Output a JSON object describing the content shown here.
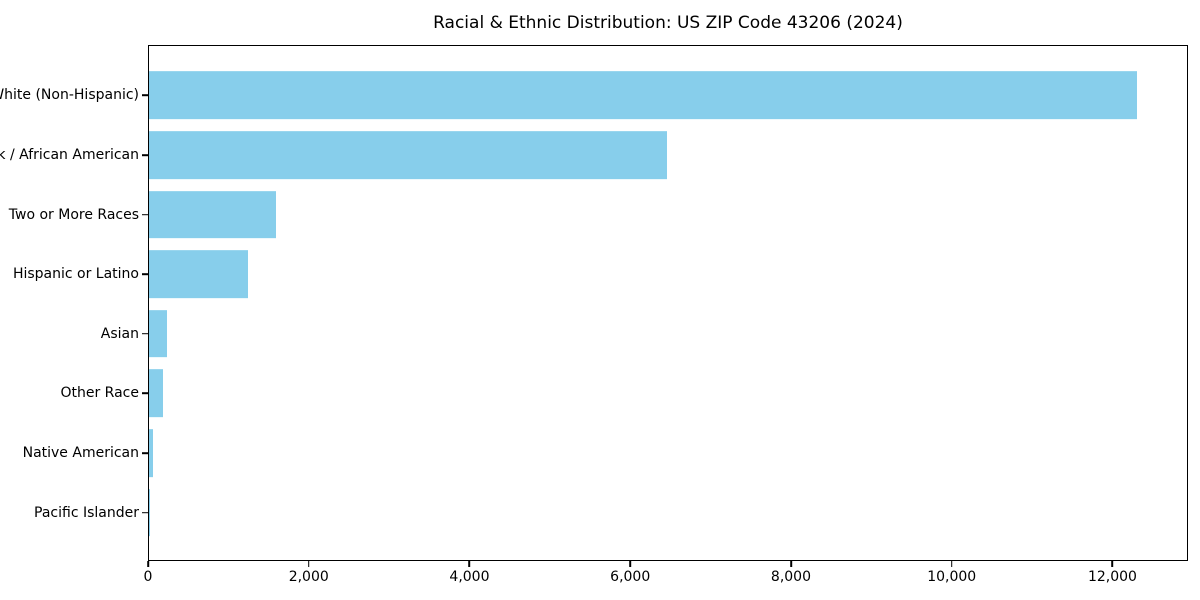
{
  "title": "Racial & Ethnic Distribution: US ZIP Code 43206 (2024)",
  "colors": {
    "bar": "#87CEEB",
    "axis": "#000000",
    "text": "#000000",
    "background": "#FFFFFF"
  },
  "chart_data": {
    "type": "bar",
    "orientation": "horizontal",
    "title": "Racial & Ethnic Distribution: US ZIP Code 43206 (2024)",
    "xlabel": "",
    "ylabel": "",
    "categories": [
      "White (Non-Hispanic)",
      "Black / African American",
      "Two or More Races",
      "Hispanic or Latino",
      "Asian",
      "Other Race",
      "Native American",
      "Pacific Islander"
    ],
    "values": [
      12320,
      6460,
      1580,
      1230,
      230,
      180,
      45,
      8
    ],
    "xlim": [
      0,
      12940
    ],
    "x_ticks": [
      0,
      2000,
      4000,
      6000,
      8000,
      10000,
      12000
    ],
    "x_tick_labels": [
      "0",
      "2,000",
      "4,000",
      "6,000",
      "8,000",
      "10,000",
      "12,000"
    ],
    "bar_color": "#87CEEB",
    "grid": false,
    "legend": false
  }
}
